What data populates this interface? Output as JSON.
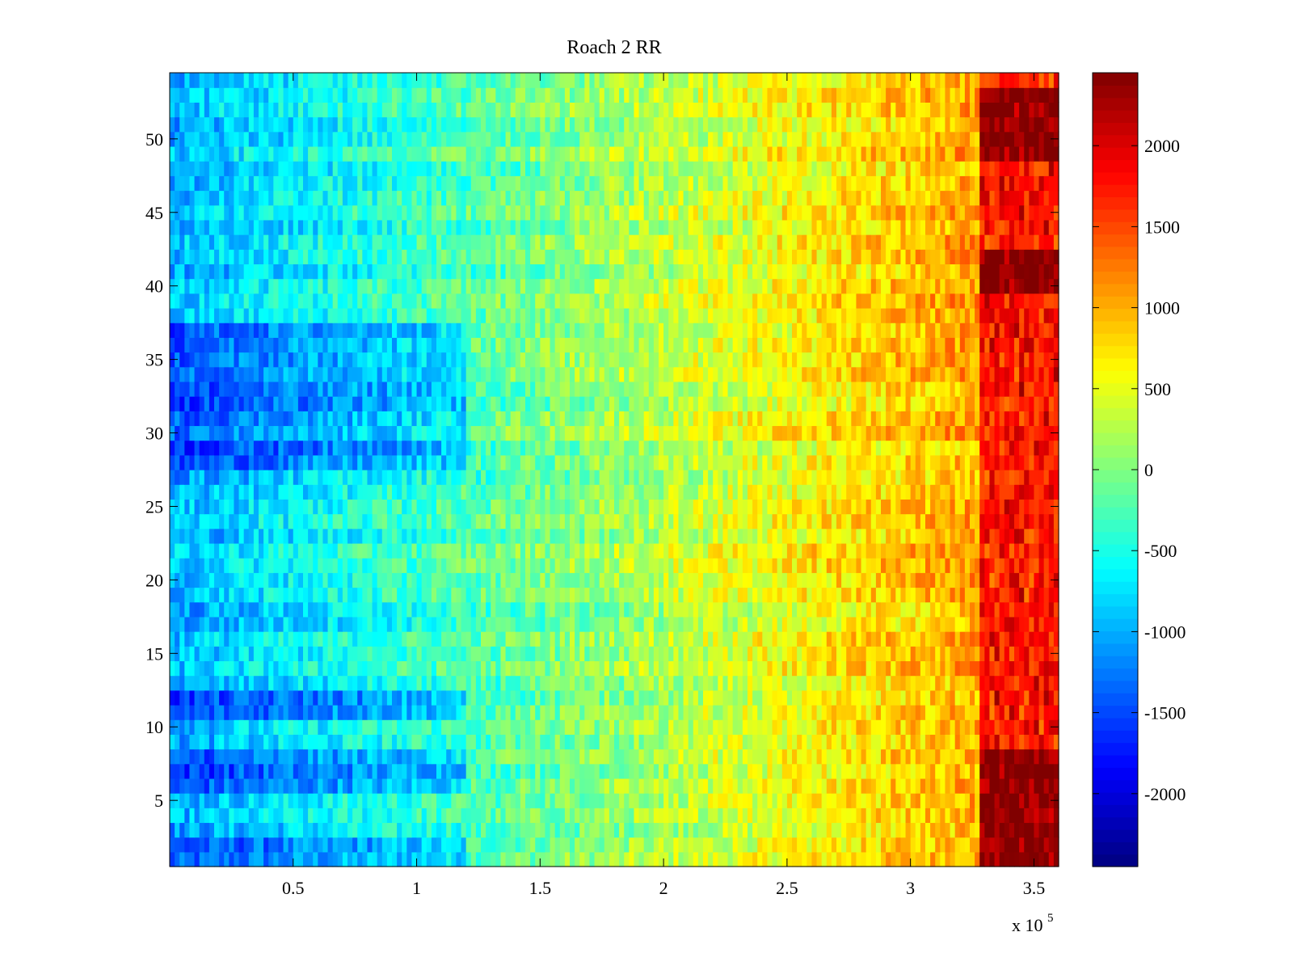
{
  "chart_data": {
    "type": "heatmap",
    "title": "Roach 2 RR",
    "xlabel": "",
    "ylabel": "",
    "x_range": [
      0,
      360000
    ],
    "y_range": [
      0.5,
      54.5
    ],
    "rows": 54,
    "x_ticks": [
      50000,
      100000,
      150000,
      200000,
      250000,
      300000,
      350000
    ],
    "x_tick_labels": [
      "0.5",
      "1",
      "1.5",
      "2",
      "2.5",
      "3",
      "3.5"
    ],
    "x_multiplier_label": "x 10",
    "x_multiplier_exponent": "5",
    "y_ticks": [
      5,
      10,
      15,
      20,
      25,
      30,
      35,
      40,
      45,
      50
    ],
    "y_tick_labels": [
      "5",
      "10",
      "15",
      "20",
      "25",
      "30",
      "35",
      "40",
      "45",
      "50"
    ],
    "colorbar": {
      "colormap": "jet",
      "range": [
        -2450,
        2450
      ],
      "ticks": [
        2000,
        1500,
        1000,
        500,
        0,
        -500,
        -1000,
        -1500,
        -2000
      ],
      "tick_labels": [
        "2000",
        "1500",
        "1000",
        "500",
        "0",
        "-500",
        "-1000",
        "-1500",
        "-2000"
      ]
    },
    "approx_trend": {
      "description_values": "value rises from about -1000 near x=0 to about 1000 near x=3.2e5, with a jump to about 2000+ beyond x=3.3e5",
      "hot_rows_right_edge": [
        1,
        2,
        3,
        4,
        5,
        6,
        7,
        8,
        40,
        41,
        42,
        49,
        50,
        51,
        52,
        53
      ],
      "cold_rows_left_edge": [
        1,
        2,
        6,
        7,
        8,
        11,
        12,
        28,
        29,
        30,
        31,
        32,
        33,
        34,
        35,
        36,
        37
      ]
    }
  }
}
